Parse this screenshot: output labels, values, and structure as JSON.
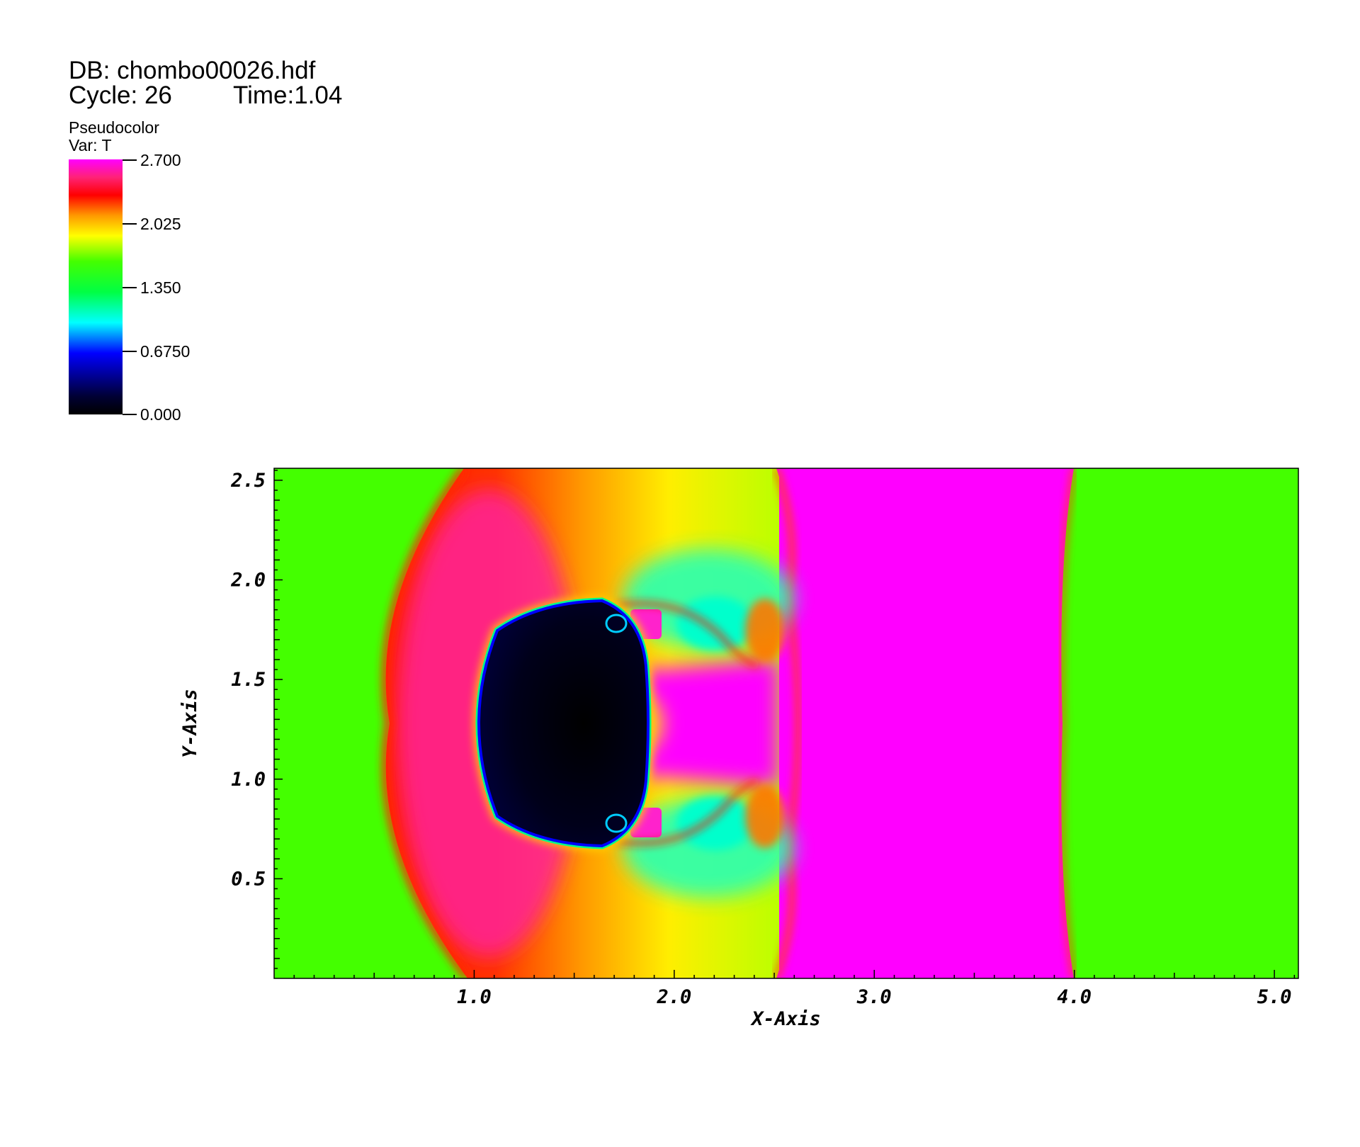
{
  "header": {
    "db": "DB: chombo00026.hdf",
    "cycle": "Cycle: 26",
    "time": "Time:1.04"
  },
  "legend": {
    "plot_type": "Pseudocolor",
    "variable": "Var: T",
    "ticks": [
      "2.700",
      "2.025",
      "1.350",
      "0.6750",
      "0.000"
    ]
  },
  "chart_data": {
    "type": "heatmap",
    "title": "",
    "xlabel": "X-Axis",
    "ylabel": "Y-Axis",
    "xlim": [
      0.0,
      5.12
    ],
    "ylim": [
      0.0,
      2.56
    ],
    "x_ticks": [
      "1.0",
      "2.0",
      "3.0",
      "4.0",
      "5.0"
    ],
    "y_ticks": [
      "0.5",
      "1.0",
      "1.5",
      "2.0",
      "2.5"
    ],
    "colorbar": {
      "min": 0.0,
      "max": 2.7
    },
    "grid": false,
    "colors": {
      "ambient_green": "#44ff00",
      "hot_magenta": "#ff00ff",
      "red": "#ff1a00",
      "cold_core": "#000010"
    }
  }
}
